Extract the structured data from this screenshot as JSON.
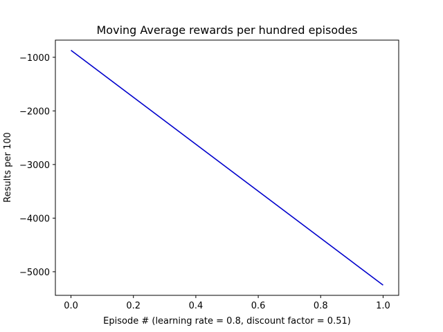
{
  "chart_data": {
    "type": "line",
    "title": "Moving Average rewards per hundred episodes",
    "xlabel": "Episode # (learning rate = 0.8, discount factor = 0.51)",
    "ylabel": "Results per 100",
    "xlim": [
      -0.05,
      1.05
    ],
    "ylim": [
      -5440,
      -680
    ],
    "xticks": [
      0.0,
      0.2,
      0.4,
      0.6,
      0.8,
      1.0
    ],
    "xtick_labels": [
      "0.0",
      "0.2",
      "0.4",
      "0.6",
      "0.8",
      "1.0"
    ],
    "yticks": [
      -1000,
      -2000,
      -3000,
      -4000,
      -5000
    ],
    "ytick_labels": [
      "−1000",
      "−2000",
      "−3000",
      "−4000",
      "−5000"
    ],
    "grid": false,
    "series": [
      {
        "color": "#0000cc",
        "x": [
          0.0,
          1.0
        ],
        "y": [
          -870,
          -5250
        ]
      }
    ]
  }
}
